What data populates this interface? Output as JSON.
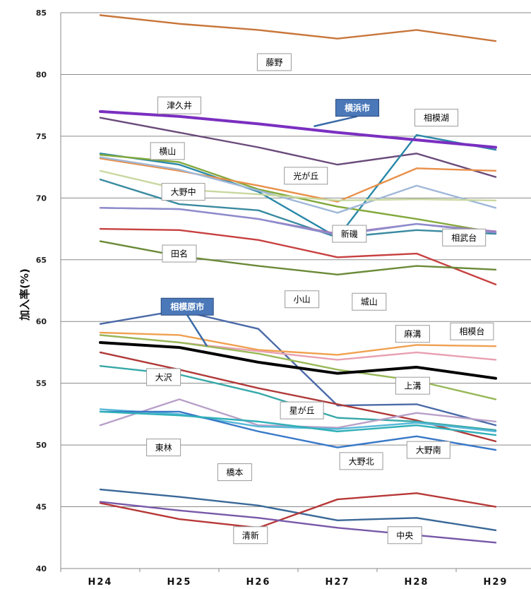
{
  "chart_data": {
    "type": "line",
    "title": "",
    "xlabel": "",
    "ylabel": "加入率(%)",
    "ylim": [
      40,
      85
    ],
    "yticks": [
      40,
      45,
      50,
      55,
      60,
      65,
      70,
      75,
      80,
      85
    ],
    "grid": true,
    "legend": "none",
    "categories": [
      "H24",
      "H25",
      "H26",
      "H27",
      "H28",
      "H29"
    ],
    "series": [
      {
        "name": "藤野",
        "color": "#c8763a",
        "values": [
          84.8,
          84.1,
          83.6,
          82.9,
          83.6,
          82.7
        ]
      },
      {
        "name": "横浜市",
        "color": "#7a2fc0",
        "width": 4,
        "highlight": true,
        "values": [
          77.0,
          76.6,
          76.0,
          75.3,
          74.7,
          74.1
        ]
      },
      {
        "name": "津久井",
        "color": "#6a4a7a",
        "values": [
          76.5,
          75.3,
          74.1,
          72.7,
          73.6,
          71.7
        ]
      },
      {
        "name": "相模湖",
        "color": "#2a88a8",
        "values": [
          73.6,
          72.7,
          70.5,
          66.8,
          75.1,
          73.9
        ]
      },
      {
        "name": "横山",
        "color": "#82a83c",
        "values": [
          73.5,
          72.9,
          70.7,
          69.3,
          68.3,
          67.2
        ]
      },
      {
        "name": "光が丘",
        "color": "#e8904a",
        "values": [
          73.2,
          72.2,
          71.0,
          69.7,
          72.4,
          72.2
        ]
      },
      {
        "name": "相武台_a",
        "color": "#a0b8d8",
        "values": [
          73.3,
          72.3,
          70.6,
          68.8,
          71.0,
          69.2
        ]
      },
      {
        "name": "",
        "color": "#c8d8a0",
        "values": [
          72.2,
          70.7,
          70.3,
          69.8,
          69.9,
          69.8
        ]
      },
      {
        "name": "大野中",
        "color": "#3a8aa0",
        "values": [
          71.5,
          69.5,
          69.0,
          66.8,
          67.4,
          67.1
        ]
      },
      {
        "name": "新磯",
        "color": "#a878b8",
        "values": [
          69.2,
          69.1,
          68.3,
          67.1,
          67.9,
          67.3
        ]
      },
      {
        "name": "相武台",
        "color": "#8c8ccc",
        "values": [
          69.2,
          69.1,
          68.3,
          67.0,
          67.9,
          67.2
        ]
      },
      {
        "name": "田名",
        "color": "#c84040",
        "values": [
          67.5,
          67.4,
          66.6,
          65.2,
          65.5,
          63.0
        ]
      },
      {
        "name": "城山",
        "color": "#6a8a38",
        "values": [
          66.5,
          65.3,
          64.5,
          63.8,
          64.5,
          64.2
        ]
      },
      {
        "name": "小山",
        "color": "#4a6aa8",
        "values": [
          59.8,
          60.9,
          59.4,
          53.2,
          53.3,
          51.6
        ]
      },
      {
        "name": "麻溝",
        "color": "#f0a050",
        "values": [
          59.1,
          58.9,
          57.7,
          57.3,
          58.1,
          58.0
        ]
      },
      {
        "name": "相模台",
        "color": "#e8a0b0",
        "values": [
          58.9,
          58.3,
          57.6,
          56.9,
          57.5,
          56.9
        ]
      },
      {
        "name": "上溝",
        "color": "#98b858",
        "values": [
          58.9,
          58.3,
          57.4,
          56.1,
          55.2,
          53.7
        ]
      },
      {
        "name": "相模原市",
        "color": "#000000",
        "width": 4,
        "highlight": true,
        "values": [
          58.3,
          57.9,
          56.7,
          55.8,
          56.3,
          55.4
        ]
      },
      {
        "name": "大沢",
        "color": "#b03838",
        "values": [
          57.5,
          56.1,
          54.6,
          53.3,
          52.0,
          50.3
        ]
      },
      {
        "name": "",
        "color": "#38a8a8",
        "values": [
          56.4,
          55.7,
          54.2,
          52.2,
          51.9,
          51.2
        ]
      },
      {
        "name": "東林",
        "color": "#b8a0c8",
        "values": [
          51.6,
          53.7,
          51.6,
          51.4,
          52.6,
          51.9
        ]
      },
      {
        "name": "星が丘",
        "color": "#58b8d8",
        "values": [
          52.9,
          52.5,
          51.5,
          51.3,
          51.8,
          51.1
        ]
      },
      {
        "name": "大野北",
        "color": "#3878c8",
        "values": [
          52.7,
          52.7,
          51.1,
          49.8,
          50.7,
          49.6
        ]
      },
      {
        "name": "大野南",
        "color": "#30b0b8",
        "values": [
          52.7,
          52.4,
          51.9,
          51.1,
          51.6,
          50.8
        ]
      },
      {
        "name": "橋本",
        "color": "#3a6898",
        "values": [
          46.4,
          45.8,
          45.1,
          43.9,
          44.1,
          43.1
        ]
      },
      {
        "name": "清新",
        "color": "#b83838",
        "values": [
          45.3,
          44.0,
          43.3,
          45.6,
          46.1,
          45.0
        ]
      },
      {
        "name": "中央",
        "color": "#7858a8",
        "values": [
          45.4,
          44.7,
          44.1,
          43.3,
          42.7,
          42.1
        ]
      }
    ],
    "labels": [
      {
        "text": "藤野",
        "cat": 2.2,
        "y": 81.0
      },
      {
        "text": "津久井",
        "cat": 1.0,
        "y": 77.5
      },
      {
        "text": "横浜市",
        "cat": 3.25,
        "y": 77.3,
        "highlight": true,
        "target_cat": 2.7,
        "target_y": 75.8
      },
      {
        "text": "相模湖",
        "cat": 4.25,
        "y": 76.5
      },
      {
        "text": "横山",
        "cat": 0.85,
        "y": 73.8
      },
      {
        "text": "光が丘",
        "cat": 2.6,
        "y": 71.8
      },
      {
        "text": "大野中",
        "cat": 1.05,
        "y": 70.5
      },
      {
        "text": "新磯",
        "cat": 3.15,
        "y": 67.1
      },
      {
        "text": "相武台",
        "cat": 4.6,
        "y": 66.8
      },
      {
        "text": "田名",
        "cat": 1.0,
        "y": 65.5
      },
      {
        "text": "城山",
        "cat": 3.4,
        "y": 61.6
      },
      {
        "text": "小山",
        "cat": 2.55,
        "y": 61.8
      },
      {
        "text": "相模原市",
        "cat": 1.1,
        "y": 61.2,
        "highlight": true,
        "target_cat": 1.35,
        "target_y": 58.0
      },
      {
        "text": "麻溝",
        "cat": 3.95,
        "y": 59.0
      },
      {
        "text": "相模台",
        "cat": 4.7,
        "y": 59.2
      },
      {
        "text": "大沢",
        "cat": 0.8,
        "y": 55.5
      },
      {
        "text": "上溝",
        "cat": 3.95,
        "y": 54.8
      },
      {
        "text": "星が丘",
        "cat": 2.55,
        "y": 52.8
      },
      {
        "text": "東林",
        "cat": 0.8,
        "y": 49.8
      },
      {
        "text": "大野北",
        "cat": 3.3,
        "y": 48.7
      },
      {
        "text": "大野南",
        "cat": 4.15,
        "y": 49.6
      },
      {
        "text": "橋本",
        "cat": 1.7,
        "y": 47.8
      },
      {
        "text": "清新",
        "cat": 1.9,
        "y": 42.7
      },
      {
        "text": "中央",
        "cat": 3.85,
        "y": 42.7
      }
    ]
  }
}
